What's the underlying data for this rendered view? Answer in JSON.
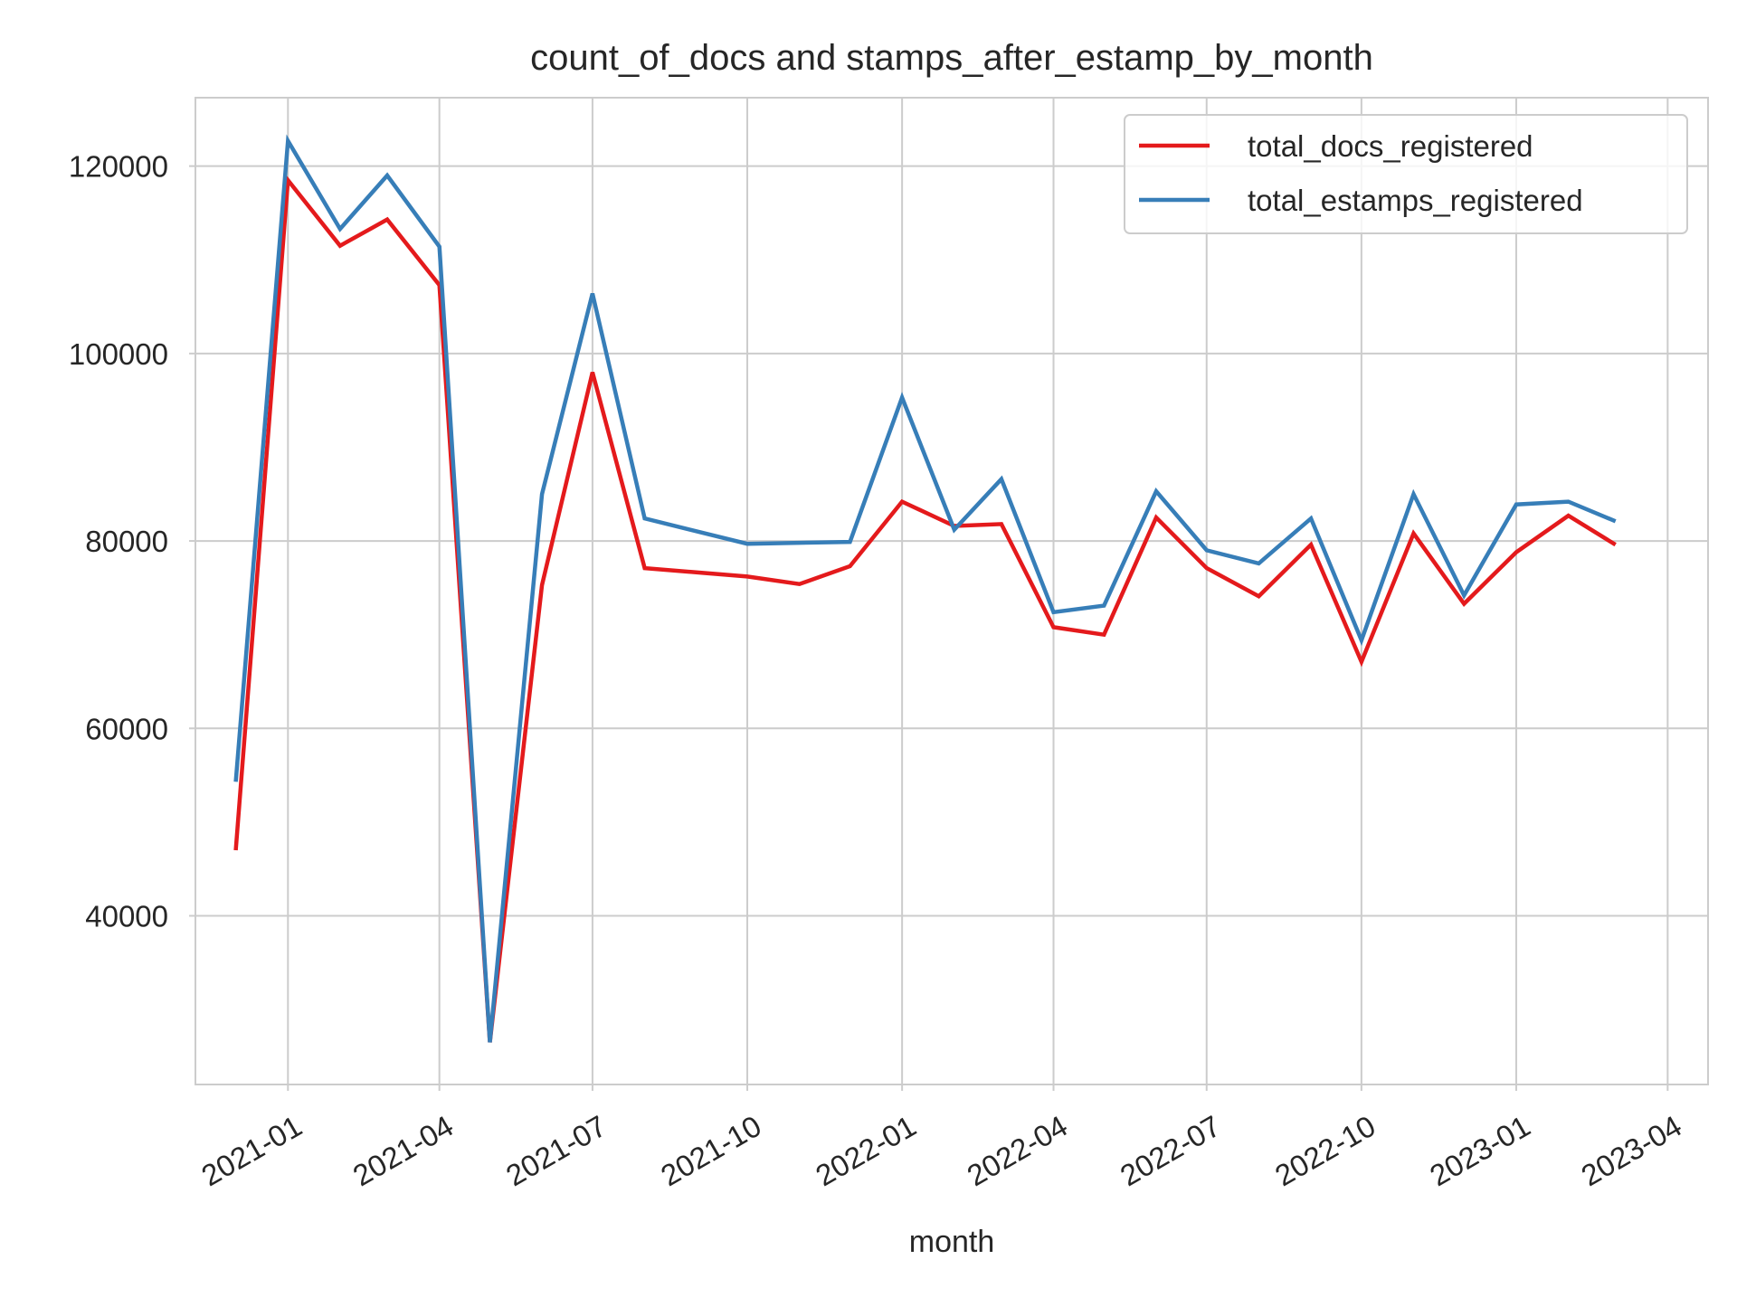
{
  "chart_data": {
    "type": "line",
    "title": "count_of_docs and stamps_after_estamp_by_month",
    "xlabel": "month",
    "ylabel": "",
    "x": [
      "2020-12",
      "2021-01",
      "2021-02",
      "2021-03",
      "2021-04",
      "2021-05",
      "2021-06",
      "2021-07",
      "2021-08",
      "2021-10",
      "2021-11",
      "2021-12",
      "2022-01",
      "2022-02",
      "2022-03",
      "2022-04",
      "2022-05",
      "2022-06",
      "2022-07",
      "2022-08",
      "2022-09",
      "2022-10",
      "2022-11",
      "2022-12",
      "2023-01",
      "2023-02",
      "2023-03"
    ],
    "series": [
      {
        "name": "total_docs_registered",
        "color": "#e41a1c",
        "values": [
          47000,
          118500,
          111500,
          114300,
          107300,
          26500,
          75300,
          98000,
          77100,
          76200,
          75400,
          77300,
          84200,
          81600,
          81800,
          70800,
          70000,
          82500,
          77100,
          74100,
          79600,
          67100,
          80800,
          73300,
          78800,
          82700,
          79600
        ]
      },
      {
        "name": "total_estamps_registered",
        "color": "#377eb8",
        "values": [
          54300,
          122700,
          113300,
          119000,
          111400,
          26500,
          85000,
          106400,
          82400,
          79700,
          79800,
          79900,
          95300,
          81200,
          86600,
          72400,
          73100,
          85300,
          79000,
          77600,
          82400,
          69400,
          85000,
          74200,
          83900,
          84200,
          82100
        ]
      }
    ],
    "x_ticks": [
      "2021-01",
      "2021-04",
      "2021-07",
      "2021-10",
      "2022-01",
      "2022-04",
      "2022-07",
      "2022-10",
      "2023-01",
      "2023-04"
    ],
    "xlim": [
      "2020-11-07",
      "2023-04-25"
    ],
    "y_ticks": [
      40000,
      60000,
      80000,
      100000,
      120000
    ],
    "ylim": [
      22000,
      127300
    ],
    "grid": true,
    "legend": "top-right"
  }
}
